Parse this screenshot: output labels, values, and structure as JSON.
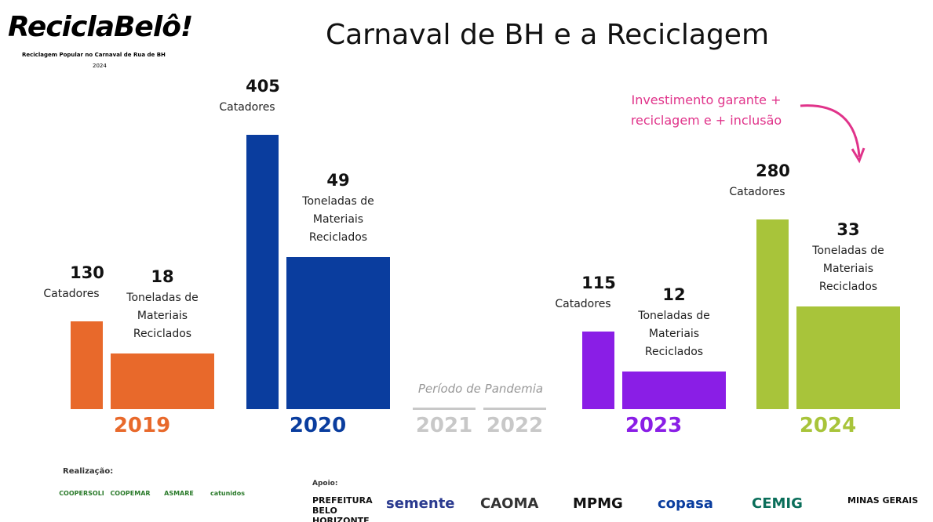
{
  "logo": {
    "name": "ReciclaBelô!",
    "tagline": "Reciclagem Popular no Carnaval de Rua de BH",
    "year": "2024"
  },
  "chart_data": {
    "type": "bar",
    "title": "Carnaval de BH e a Reciclagem",
    "categories": [
      "2019",
      "2020",
      "2021",
      "2022",
      "2023",
      "2024"
    ],
    "colors": [
      "#e8692b",
      "#0a3d9e",
      "#c8c8c8",
      "#c8c8c8",
      "#8a1ee6",
      "#a8c43a"
    ],
    "series": [
      {
        "name": "Catadores",
        "values": [
          130,
          405,
          null,
          null,
          115,
          280
        ]
      },
      {
        "name": "Toneladas de Materiais Reciclados",
        "values": [
          18,
          49,
          null,
          null,
          12,
          33
        ]
      }
    ],
    "annotations": [
      "Período de Pandemia",
      "Investimento garante + reciclagem e + inclusão"
    ]
  },
  "footer": {
    "realizacao": "Realização:",
    "apoio": "Apoio:",
    "realizacao_logos": [
      "COOPERSOLI",
      "COOPEMAR",
      "ASMARE",
      "catunidos"
    ],
    "apoio_logos": [
      "PREFEITURA BELO HORIZONTE",
      "semente",
      "CAOMA",
      "MPMG",
      "copasa",
      "CEMIG",
      "MINAS GERAIS"
    ]
  }
}
